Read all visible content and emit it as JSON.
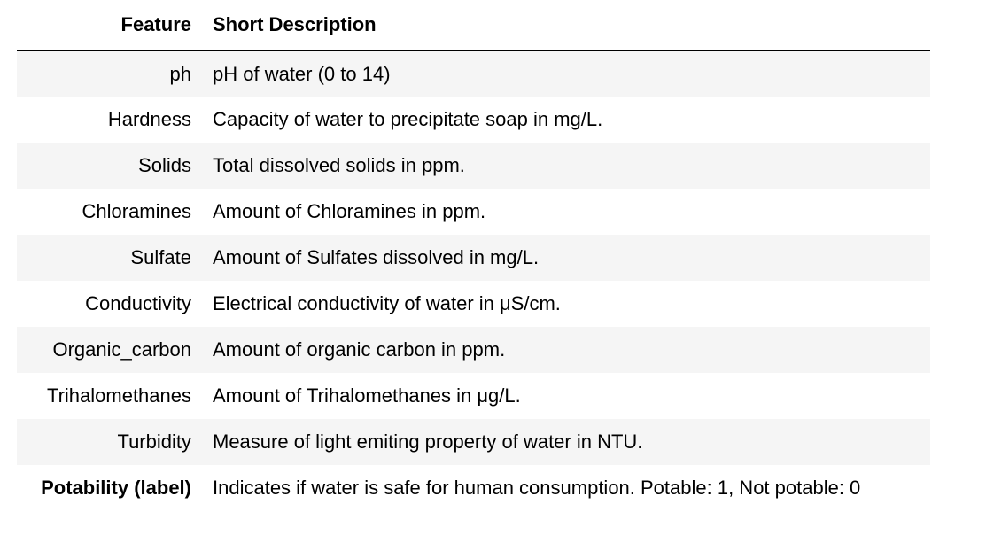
{
  "table": {
    "headers": {
      "feature": "Feature",
      "description": "Short Description"
    },
    "rows": [
      {
        "feature": "ph",
        "description": "pH of water (0 to 14)"
      },
      {
        "feature": "Hardness",
        "description": "Capacity of water to precipitate soap in mg/L."
      },
      {
        "feature": "Solids",
        "description": "Total dissolved solids in ppm."
      },
      {
        "feature": "Chloramines",
        "description": "Amount of Chloramines in ppm."
      },
      {
        "feature": "Sulfate",
        "description": "Amount of Sulfates dissolved in mg/L."
      },
      {
        "feature": "Conductivity",
        "description": "Electrical conductivity of water in μS/cm."
      },
      {
        "feature": "Organic_carbon",
        "description": "Amount of organic carbon in ppm."
      },
      {
        "feature": "Trihalomethanes",
        "description": "Amount of Trihalomethanes in μg/L."
      },
      {
        "feature": "Turbidity",
        "description": "Measure of light emiting property of water in NTU."
      },
      {
        "feature": "Potability (label)",
        "description": "Indicates if water is safe for human consumption. Potable: 1, Not potable: 0"
      }
    ]
  },
  "colors": {
    "stripe": "#f5f5f5",
    "header_rule": "#000000",
    "text": "#000000"
  }
}
